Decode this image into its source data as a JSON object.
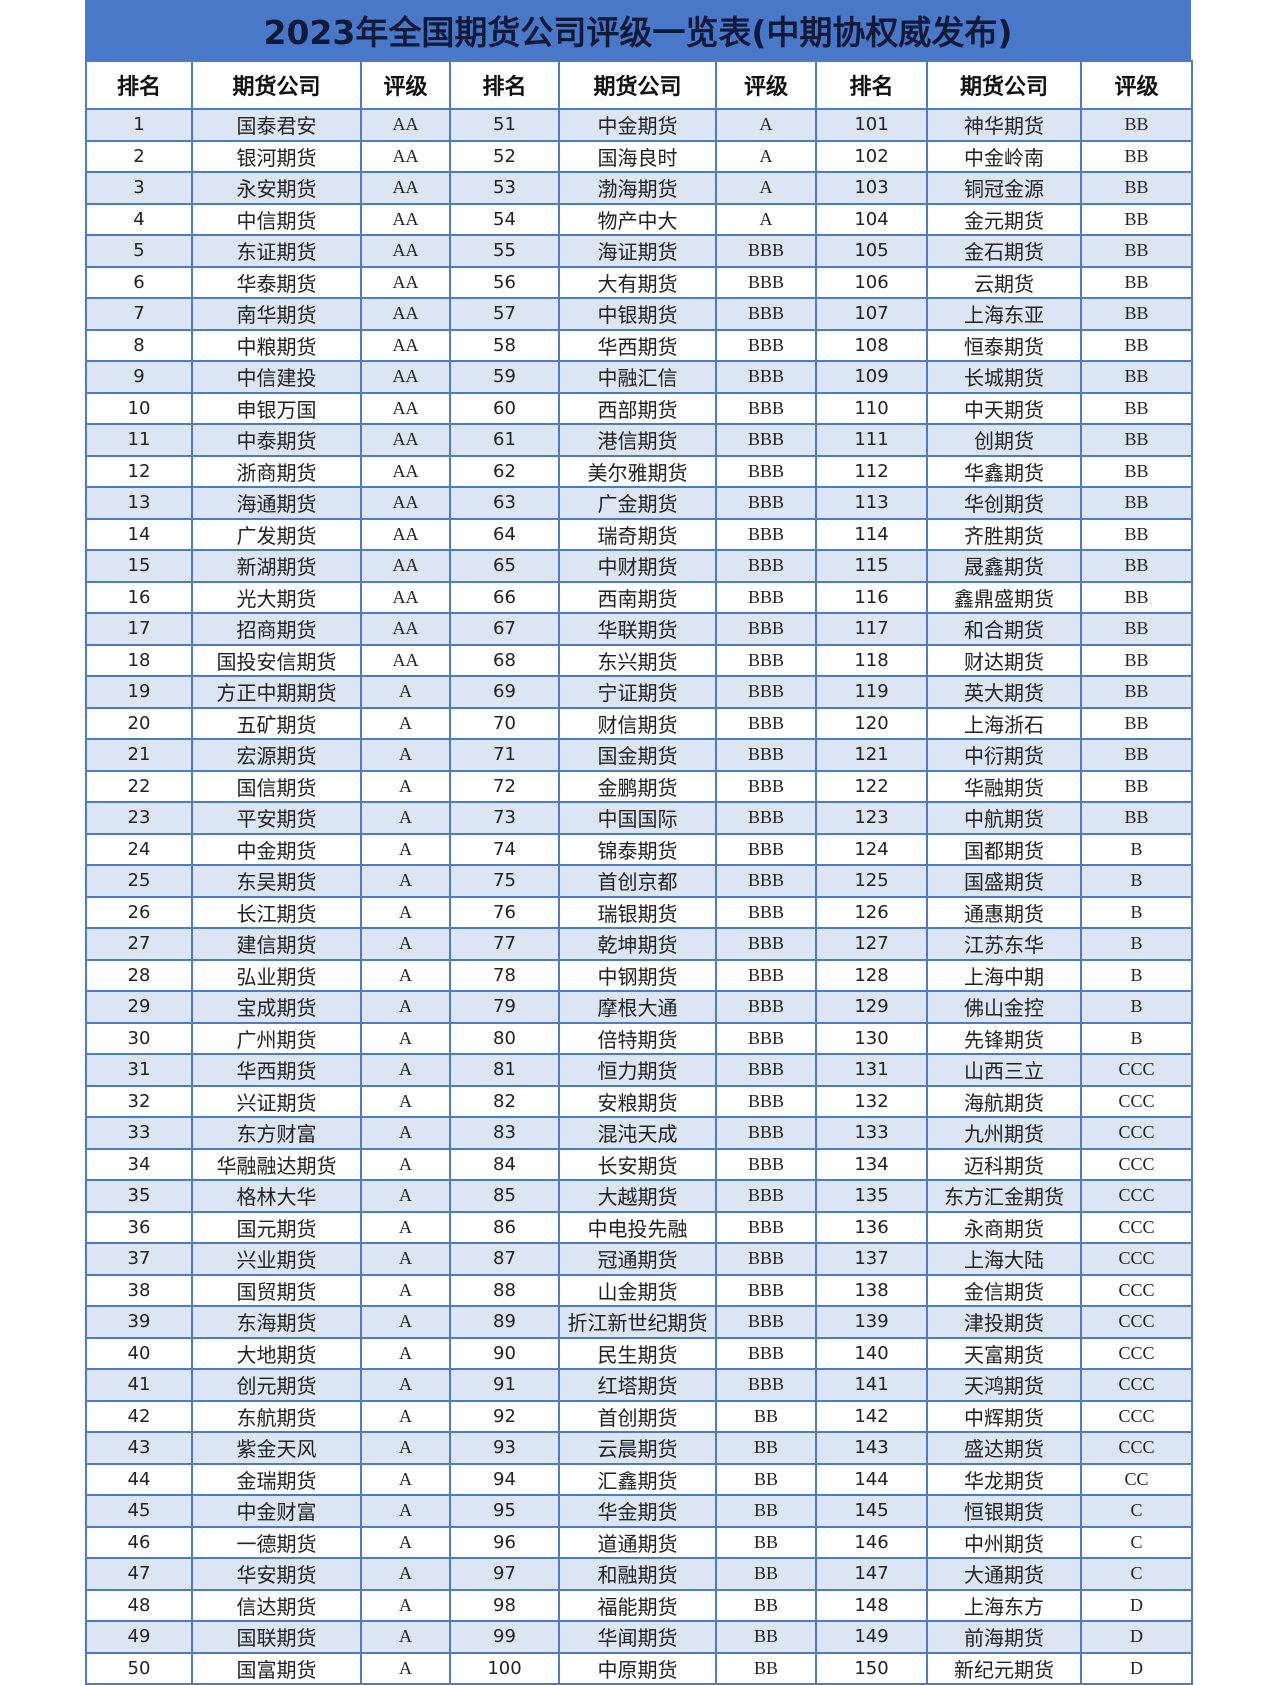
{
  "title": "2023年全国期货公司评级一览表(中期协权威发布)",
  "headers": [
    "排名",
    "期货公司",
    "评级",
    "排名",
    "期货公司",
    "评级",
    "排名",
    "期货公司",
    "评级"
  ],
  "colors": {
    "title_bg": "#4a78c8",
    "border": "#4f7bc6",
    "row_alt": "#dbe5f4"
  },
  "rows": [
    [
      "1",
      "国泰君安",
      "AA"
    ],
    [
      "2",
      "银河期货",
      "AA"
    ],
    [
      "3",
      "永安期货",
      "AA"
    ],
    [
      "4",
      "中信期货",
      "AA"
    ],
    [
      "5",
      "东证期货",
      "AA"
    ],
    [
      "6",
      "华泰期货",
      "AA"
    ],
    [
      "7",
      "南华期货",
      "AA"
    ],
    [
      "8",
      "中粮期货",
      "AA"
    ],
    [
      "9",
      "中信建投",
      "AA"
    ],
    [
      "10",
      "申银万国",
      "AA"
    ],
    [
      "11",
      "中泰期货",
      "AA"
    ],
    [
      "12",
      "浙商期货",
      "AA"
    ],
    [
      "13",
      "海通期货",
      "AA"
    ],
    [
      "14",
      "广发期货",
      "AA"
    ],
    [
      "15",
      "新湖期货",
      "AA"
    ],
    [
      "16",
      "光大期货",
      "AA"
    ],
    [
      "17",
      "招商期货",
      "AA"
    ],
    [
      "18",
      "国投安信期货",
      "AA"
    ],
    [
      "19",
      "方正中期期货",
      "A"
    ],
    [
      "20",
      "五矿期货",
      "A"
    ],
    [
      "21",
      "宏源期货",
      "A"
    ],
    [
      "22",
      "国信期货",
      "A"
    ],
    [
      "23",
      "平安期货",
      "A"
    ],
    [
      "24",
      "中金期货",
      "A"
    ],
    [
      "25",
      "东吴期货",
      "A"
    ],
    [
      "26",
      "长江期货",
      "A"
    ],
    [
      "27",
      "建信期货",
      "A"
    ],
    [
      "28",
      "弘业期货",
      "A"
    ],
    [
      "29",
      "宝成期货",
      "A"
    ],
    [
      "30",
      "广州期货",
      "A"
    ],
    [
      "31",
      "华西期货",
      "A"
    ],
    [
      "32",
      "兴证期货",
      "A"
    ],
    [
      "33",
      "东方财富",
      "A"
    ],
    [
      "34",
      "华融融达期货",
      "A"
    ],
    [
      "35",
      "格林大华",
      "A"
    ],
    [
      "36",
      "国元期货",
      "A"
    ],
    [
      "37",
      "兴业期货",
      "A"
    ],
    [
      "38",
      "国贸期货",
      "A"
    ],
    [
      "39",
      "东海期货",
      "A"
    ],
    [
      "40",
      "大地期货",
      "A"
    ],
    [
      "41",
      "创元期货",
      "A"
    ],
    [
      "42",
      "东航期货",
      "A"
    ],
    [
      "43",
      "紫金天风",
      "A"
    ],
    [
      "44",
      "金瑞期货",
      "A"
    ],
    [
      "45",
      "中金财富",
      "A"
    ],
    [
      "46",
      "一德期货",
      "A"
    ],
    [
      "47",
      "华安期货",
      "A"
    ],
    [
      "48",
      "信达期货",
      "A"
    ],
    [
      "49",
      "国联期货",
      "A"
    ],
    [
      "50",
      "国富期货",
      "A"
    ],
    [
      "51",
      "中金期货",
      "A"
    ],
    [
      "52",
      "国海良时",
      "A"
    ],
    [
      "53",
      "渤海期货",
      "A"
    ],
    [
      "54",
      "物产中大",
      "A"
    ],
    [
      "55",
      "海证期货",
      "BBB"
    ],
    [
      "56",
      "大有期货",
      "BBB"
    ],
    [
      "57",
      "中银期货",
      "BBB"
    ],
    [
      "58",
      "华西期货",
      "BBB"
    ],
    [
      "59",
      "中融汇信",
      "BBB"
    ],
    [
      "60",
      "西部期货",
      "BBB"
    ],
    [
      "61",
      "港信期货",
      "BBB"
    ],
    [
      "62",
      "美尔雅期货",
      "BBB"
    ],
    [
      "63",
      "广金期货",
      "BBB"
    ],
    [
      "64",
      "瑞奇期货",
      "BBB"
    ],
    [
      "65",
      "中财期货",
      "BBB"
    ],
    [
      "66",
      "西南期货",
      "BBB"
    ],
    [
      "67",
      "华联期货",
      "BBB"
    ],
    [
      "68",
      "东兴期货",
      "BBB"
    ],
    [
      "69",
      "宁证期货",
      "BBB"
    ],
    [
      "70",
      "财信期货",
      "BBB"
    ],
    [
      "71",
      "国金期货",
      "BBB"
    ],
    [
      "72",
      "金鹏期货",
      "BBB"
    ],
    [
      "73",
      "中国国际",
      "BBB"
    ],
    [
      "74",
      "锦泰期货",
      "BBB"
    ],
    [
      "75",
      "首创京都",
      "BBB"
    ],
    [
      "76",
      "瑞银期货",
      "BBB"
    ],
    [
      "77",
      "乾坤期货",
      "BBB"
    ],
    [
      "78",
      "中钢期货",
      "BBB"
    ],
    [
      "79",
      "摩根大通",
      "BBB"
    ],
    [
      "80",
      "倍特期货",
      "BBB"
    ],
    [
      "81",
      "恒力期货",
      "BBB"
    ],
    [
      "82",
      "安粮期货",
      "BBB"
    ],
    [
      "83",
      "混沌天成",
      "BBB"
    ],
    [
      "84",
      "长安期货",
      "BBB"
    ],
    [
      "85",
      "大越期货",
      "BBB"
    ],
    [
      "86",
      "中电投先融",
      "BBB"
    ],
    [
      "87",
      "冠通期货",
      "BBB"
    ],
    [
      "88",
      "山金期货",
      "BBB"
    ],
    [
      "89",
      "折江新世纪期货",
      "BBB"
    ],
    [
      "90",
      "民生期货",
      "BBB"
    ],
    [
      "91",
      "红塔期货",
      "BBB"
    ],
    [
      "92",
      "首创期货",
      "BB"
    ],
    [
      "93",
      "云晨期货",
      "BB"
    ],
    [
      "94",
      "汇鑫期货",
      "BB"
    ],
    [
      "95",
      "华金期货",
      "BB"
    ],
    [
      "96",
      "道通期货",
      "BB"
    ],
    [
      "97",
      "和融期货",
      "BB"
    ],
    [
      "98",
      "福能期货",
      "BB"
    ],
    [
      "99",
      "华闻期货",
      "BB"
    ],
    [
      "100",
      "中原期货",
      "BB"
    ],
    [
      "101",
      "神华期货",
      "BB"
    ],
    [
      "102",
      "中金岭南",
      "BB"
    ],
    [
      "103",
      "铜冠金源",
      "BB"
    ],
    [
      "104",
      "金元期货",
      "BB"
    ],
    [
      "105",
      "金石期货",
      "BB"
    ],
    [
      "106",
      "云期货",
      "BB"
    ],
    [
      "107",
      "上海东亚",
      "BB"
    ],
    [
      "108",
      "恒泰期货",
      "BB"
    ],
    [
      "109",
      "长城期货",
      "BB"
    ],
    [
      "110",
      "中天期货",
      "BB"
    ],
    [
      "111",
      "创期货",
      "BB"
    ],
    [
      "112",
      "华鑫期货",
      "BB"
    ],
    [
      "113",
      "华创期货",
      "BB"
    ],
    [
      "114",
      "齐胜期货",
      "BB"
    ],
    [
      "115",
      "晟鑫期货",
      "BB"
    ],
    [
      "116",
      "鑫鼎盛期货",
      "BB"
    ],
    [
      "117",
      "和合期货",
      "BB"
    ],
    [
      "118",
      "财达期货",
      "BB"
    ],
    [
      "119",
      "英大期货",
      "BB"
    ],
    [
      "120",
      "上海浙石",
      "BB"
    ],
    [
      "121",
      "中衍期货",
      "BB"
    ],
    [
      "122",
      "华融期货",
      "BB"
    ],
    [
      "123",
      "中航期货",
      "BB"
    ],
    [
      "124",
      "国都期货",
      "B"
    ],
    [
      "125",
      "国盛期货",
      "B"
    ],
    [
      "126",
      "通惠期货",
      "B"
    ],
    [
      "127",
      "江苏东华",
      "B"
    ],
    [
      "128",
      "上海中期",
      "B"
    ],
    [
      "129",
      "佛山金控",
      "B"
    ],
    [
      "130",
      "先锋期货",
      "B"
    ],
    [
      "131",
      "山西三立",
      "CCC"
    ],
    [
      "132",
      "海航期货",
      "CCC"
    ],
    [
      "133",
      "九州期货",
      "CCC"
    ],
    [
      "134",
      "迈科期货",
      "CCC"
    ],
    [
      "135",
      "东方汇金期货",
      "CCC"
    ],
    [
      "136",
      "永商期货",
      "CCC"
    ],
    [
      "137",
      "上海大陆",
      "CCC"
    ],
    [
      "138",
      "金信期货",
      "CCC"
    ],
    [
      "139",
      "津投期货",
      "CCC"
    ],
    [
      "140",
      "天富期货",
      "CCC"
    ],
    [
      "141",
      "天鸿期货",
      "CCC"
    ],
    [
      "142",
      "中辉期货",
      "CCC"
    ],
    [
      "143",
      "盛达期货",
      "CCC"
    ],
    [
      "144",
      "华龙期货",
      "CC"
    ],
    [
      "145",
      "恒银期货",
      "C"
    ],
    [
      "146",
      "中州期货",
      "C"
    ],
    [
      "147",
      "大通期货",
      "C"
    ],
    [
      "148",
      "上海东方",
      "D"
    ],
    [
      "149",
      "前海期货",
      "D"
    ],
    [
      "150",
      "新纪元期货",
      "D"
    ]
  ]
}
